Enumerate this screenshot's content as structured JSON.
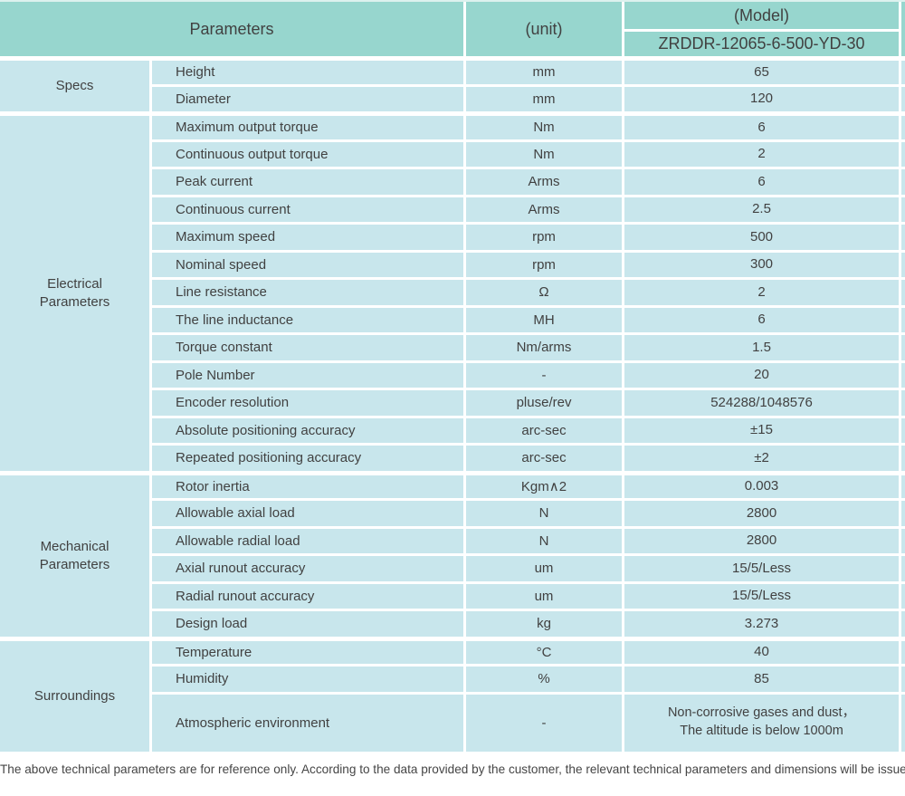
{
  "table": {
    "header": {
      "parameters_label": "Parameters",
      "unit_label": "(unit)",
      "model_label": "(Model)",
      "model_value": "ZRDDR-12065-6-500-YD-30"
    },
    "sections": [
      {
        "label": "Specs",
        "rows": [
          {
            "name": "Height",
            "unit": "mm",
            "value": "65"
          },
          {
            "name": "Diameter",
            "unit": "mm",
            "value": "120"
          }
        ]
      },
      {
        "label": "Electrical\nParameters",
        "rows": [
          {
            "name": "Maximum output torque",
            "unit": "Nm",
            "value": "6"
          },
          {
            "name": "Continuous output torque",
            "unit": "Nm",
            "value": "2"
          },
          {
            "name": "Peak current",
            "unit": "Arms",
            "value": "6"
          },
          {
            "name": "Continuous current",
            "unit": "Arms",
            "value": "2.5"
          },
          {
            "name": "Maximum speed",
            "unit": "rpm",
            "value": "500"
          },
          {
            "name": "Nominal speed",
            "unit": "rpm",
            "value": "300"
          },
          {
            "name": "Line resistance",
            "unit": "Ω",
            "value": "2"
          },
          {
            "name": "The line inductance",
            "unit": "MH",
            "value": "6"
          },
          {
            "name": "Torque constant",
            "unit": "Nm/arms",
            "value": "1.5"
          },
          {
            "name": "Pole Number",
            "unit": "-",
            "value": "20"
          },
          {
            "name": "Encoder resolution",
            "unit": "pluse/rev",
            "value": "524288/1048576"
          },
          {
            "name": "Absolute positioning accuracy",
            "unit": "arc-sec",
            "value": "±15"
          },
          {
            "name": "Repeated positioning accuracy",
            "unit": "arc-sec",
            "value": "±2"
          }
        ]
      },
      {
        "label": "Mechanical\nParameters",
        "rows": [
          {
            "name": "Rotor inertia",
            "unit": "Kgm∧2",
            "value": "0.003"
          },
          {
            "name": "Allowable axial load",
            "unit": "N",
            "value": "2800"
          },
          {
            "name": "Allowable radial load",
            "unit": "N",
            "value": "2800"
          },
          {
            "name": "Axial runout accuracy",
            "unit": "um",
            "value": "15/5/Less"
          },
          {
            "name": "Radial runout accuracy",
            "unit": "um",
            "value": "15/5/Less"
          },
          {
            "name": "Design load",
            "unit": "kg",
            "value": "3.273"
          }
        ]
      },
      {
        "label": "Surroundings",
        "rows": [
          {
            "name": "Temperature",
            "unit": "°C",
            "value": "40"
          },
          {
            "name": "Humidity",
            "unit": "%",
            "value": "85"
          },
          {
            "name": "Atmospheric environment",
            "unit": "-",
            "value": "Non-corrosive gases and dust，\nThe altitude is below 1000m"
          }
        ]
      }
    ],
    "footer_note": "The above technical parameters are for reference only. According to the data provided by the customer, the relevant technical parameters and dimensions will be issued.",
    "colors": {
      "header_bg": "#97d6ce",
      "row_bg": "#c8e6ec",
      "border": "#ffffff",
      "text": "#414141"
    }
  }
}
